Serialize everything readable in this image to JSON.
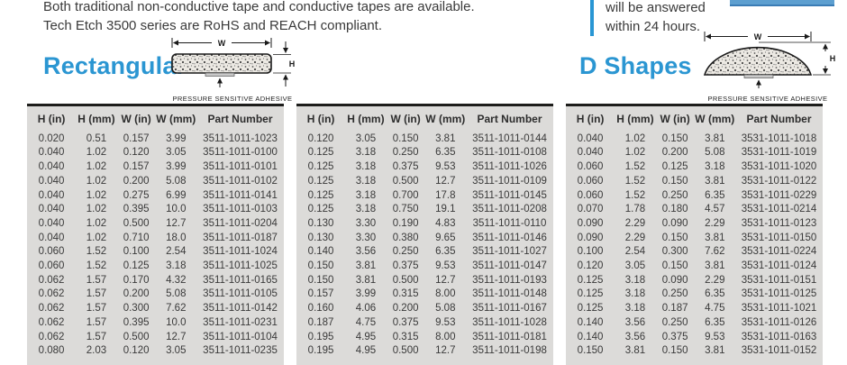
{
  "intro": {
    "line1": "Both traditional non-conductive tape and conductive tapes are available.",
    "line2": "Tech Etch 3500 series are RoHS and REACH compliant."
  },
  "callout": {
    "line1": "will be answered",
    "line2": "within 24 hours."
  },
  "sections": {
    "rectangular": {
      "title": "Rectangular"
    },
    "d_shapes": {
      "title": "D Shapes"
    }
  },
  "diagram": {
    "w_label": "W",
    "h_label": "H",
    "caption": "PRESSURE SENSITIVE ADHESIVE"
  },
  "colors": {
    "accent_blue": "#2b96d2",
    "callout_bar_blue": "#2996d4",
    "button_blue": "#5d9fd0",
    "panel_gray": "#dcdbd9",
    "panel_top_border": "#1d1d1b",
    "text_dark": "#3a3a3a"
  },
  "table_headers": [
    "H (in)",
    "H (mm)",
    "W (in)",
    "W (mm)",
    "Part Number"
  ],
  "tables": [
    {
      "section": "Rectangular",
      "rows": [
        [
          "0.020",
          "0.51",
          "0.157",
          "3.99",
          "3511-1011-1023"
        ],
        [
          "0.040",
          "1.02",
          "0.120",
          "3.05",
          "3511-1011-0100"
        ],
        [
          "0.040",
          "1.02",
          "0.157",
          "3.99",
          "3511-1011-0101"
        ],
        [
          "0.040",
          "1.02",
          "0.200",
          "5.08",
          "3511-1011-0102"
        ],
        [
          "0.040",
          "1.02",
          "0.275",
          "6.99",
          "3511-1011-0141"
        ],
        [
          "0.040",
          "1.02",
          "0.395",
          "10.0",
          "3511-1011-0103"
        ],
        [
          "0.040",
          "1.02",
          "0.500",
          "12.7",
          "3511-1011-0204"
        ],
        [
          "0.040",
          "1.02",
          "0.710",
          "18.0",
          "3511-1011-0187"
        ],
        [
          "0.060",
          "1.52",
          "0.100",
          "2.54",
          "3511-1011-1024"
        ],
        [
          "0.060",
          "1.52",
          "0.125",
          "3.18",
          "3511-1011-1025"
        ],
        [
          "0.062",
          "1.57",
          "0.170",
          "4.32",
          "3511-1011-0165"
        ],
        [
          "0.062",
          "1.57",
          "0.200",
          "5.08",
          "3511-1011-0105"
        ],
        [
          "0.062",
          "1.57",
          "0.300",
          "7.62",
          "3511-1011-0142"
        ],
        [
          "0.062",
          "1.57",
          "0.395",
          "10.0",
          "3511-1011-0231"
        ],
        [
          "0.062",
          "1.57",
          "0.500",
          "12.7",
          "3511-1011-0104"
        ],
        [
          "0.080",
          "2.03",
          "0.120",
          "3.05",
          "3511-1011-0235"
        ]
      ]
    },
    {
      "section": "Rectangular",
      "rows": [
        [
          "0.120",
          "3.05",
          "0.150",
          "3.81",
          "3511-1011-0144"
        ],
        [
          "0.125",
          "3.18",
          "0.250",
          "6.35",
          "3511-1011-0108"
        ],
        [
          "0.125",
          "3.18",
          "0.375",
          "9.53",
          "3511-1011-1026"
        ],
        [
          "0.125",
          "3.18",
          "0.500",
          "12.7",
          "3511-1011-0109"
        ],
        [
          "0.125",
          "3.18",
          "0.700",
          "17.8",
          "3511-1011-0145"
        ],
        [
          "0.125",
          "3.18",
          "0.750",
          "19.1",
          "3511-1011-0208"
        ],
        [
          "0.130",
          "3.30",
          "0.190",
          "4.83",
          "3511-1011-0110"
        ],
        [
          "0.130",
          "3.30",
          "0.380",
          "9.65",
          "3511-1011-0146"
        ],
        [
          "0.140",
          "3.56",
          "0.250",
          "6.35",
          "3511-1011-1027"
        ],
        [
          "0.150",
          "3.81",
          "0.375",
          "9.53",
          "3511-1011-0147"
        ],
        [
          "0.150",
          "3.81",
          "0.500",
          "12.7",
          "3511-1011-0193"
        ],
        [
          "0.157",
          "3.99",
          "0.315",
          "8.00",
          "3511-1011-0148"
        ],
        [
          "0.160",
          "4.06",
          "0.200",
          "5.08",
          "3511-1011-0167"
        ],
        [
          "0.187",
          "4.75",
          "0.375",
          "9.53",
          "3511-1011-1028"
        ],
        [
          "0.195",
          "4.95",
          "0.315",
          "8.00",
          "3511-1011-0181"
        ],
        [
          "0.195",
          "4.95",
          "0.500",
          "12.7",
          "3511-1011-0198"
        ]
      ]
    },
    {
      "section": "D Shapes",
      "rows": [
        [
          "0.040",
          "1.02",
          "0.150",
          "3.81",
          "3531-1011-1018"
        ],
        [
          "0.040",
          "1.02",
          "0.200",
          "5.08",
          "3531-1011-1019"
        ],
        [
          "0.060",
          "1.52",
          "0.125",
          "3.18",
          "3531-1011-1020"
        ],
        [
          "0.060",
          "1.52",
          "0.150",
          "3.81",
          "3531-1011-0122"
        ],
        [
          "0.060",
          "1.52",
          "0.250",
          "6.35",
          "3531-1011-0229"
        ],
        [
          "0.070",
          "1.78",
          "0.180",
          "4.57",
          "3531-1011-0214"
        ],
        [
          "0.090",
          "2.29",
          "0.090",
          "2.29",
          "3531-1011-0123"
        ],
        [
          "0.090",
          "2.29",
          "0.150",
          "3.81",
          "3531-1011-0150"
        ],
        [
          "0.100",
          "2.54",
          "0.300",
          "7.62",
          "3531-1011-0224"
        ],
        [
          "0.120",
          "3.05",
          "0.150",
          "3.81",
          "3531-1011-0124"
        ],
        [
          "0.125",
          "3.18",
          "0.090",
          "2.29",
          "3531-1011-0151"
        ],
        [
          "0.125",
          "3.18",
          "0.250",
          "6.35",
          "3531-1011-0125"
        ],
        [
          "0.125",
          "3.18",
          "0.187",
          "4.75",
          "3531-1011-1021"
        ],
        [
          "0.140",
          "3.56",
          "0.250",
          "6.35",
          "3531-1011-0126"
        ],
        [
          "0.140",
          "3.56",
          "0.375",
          "9.53",
          "3531-1011-0163"
        ],
        [
          "0.150",
          "3.81",
          "0.150",
          "3.81",
          "3531-1011-0152"
        ]
      ]
    }
  ]
}
